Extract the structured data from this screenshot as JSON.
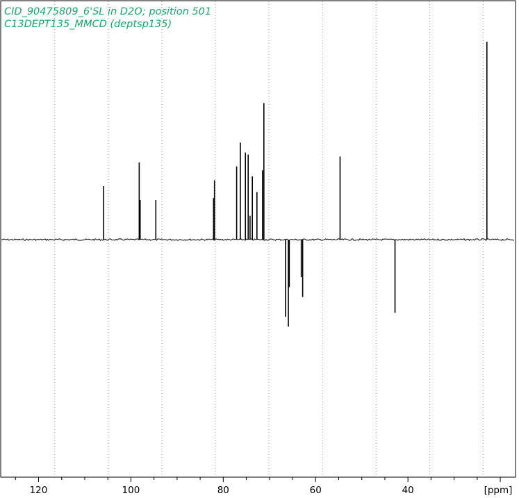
{
  "chart_data": {
    "type": "line",
    "title_lines": [
      "CID_90475809_6'SL in D2O; position 501",
      "C13DEPT135_MMCD (deptsp135)"
    ],
    "x_unit": "[ppm]",
    "x_axis_reversed": true,
    "xlim": [
      128.2,
      16.7
    ],
    "ylim": [
      -1.0,
      1.0
    ],
    "x_ticks": [
      120,
      100,
      80,
      60,
      40
    ],
    "x_tick_labels": [
      "120",
      "100",
      "80",
      "60",
      "40"
    ],
    "grid": "vertical dotted",
    "peaks": [
      {
        "x": 105.9,
        "y": 0.27
      },
      {
        "x": 98.2,
        "y": 0.39
      },
      {
        "x": 98.0,
        "y": 0.2
      },
      {
        "x": 94.6,
        "y": 0.2
      },
      {
        "x": 82.1,
        "y": 0.21
      },
      {
        "x": 81.9,
        "y": 0.3
      },
      {
        "x": 77.1,
        "y": 0.37
      },
      {
        "x": 76.3,
        "y": 0.49
      },
      {
        "x": 75.2,
        "y": 0.44
      },
      {
        "x": 74.6,
        "y": 0.43
      },
      {
        "x": 74.2,
        "y": 0.12
      },
      {
        "x": 73.7,
        "y": 0.32
      },
      {
        "x": 72.7,
        "y": 0.24
      },
      {
        "x": 71.5,
        "y": 0.35
      },
      {
        "x": 71.2,
        "y": 0.69
      },
      {
        "x": 66.5,
        "y": -0.39
      },
      {
        "x": 65.9,
        "y": -0.44
      },
      {
        "x": 65.7,
        "y": -0.24
      },
      {
        "x": 63.1,
        "y": -0.19
      },
      {
        "x": 62.8,
        "y": -0.29
      },
      {
        "x": 54.7,
        "y": 0.42
      },
      {
        "x": 42.8,
        "y": -0.37
      },
      {
        "x": 22.9,
        "y": 1.0
      }
    ],
    "baseline": 0
  },
  "colors": {
    "title": "#1aa86a",
    "trace": "#000000",
    "grid": "#9a9a9a",
    "background": "#ffffff"
  }
}
